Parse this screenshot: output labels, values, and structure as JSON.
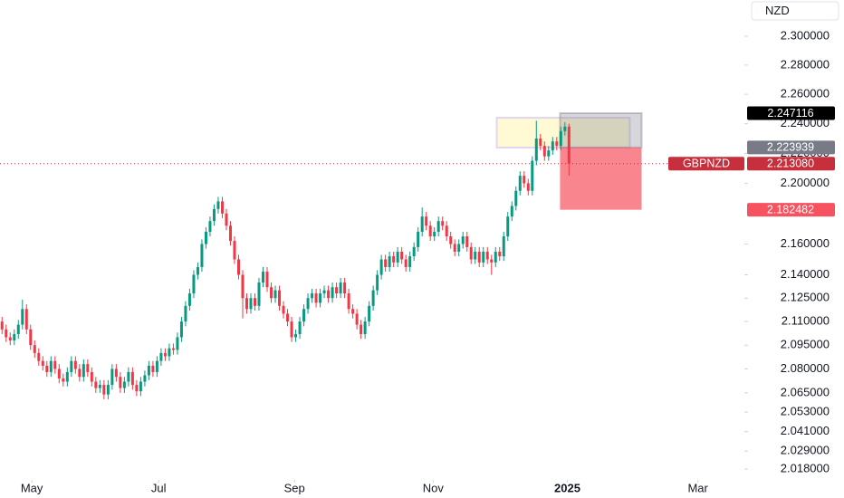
{
  "chart_data": {
    "type": "candlestick",
    "symbol": "GBPNZD",
    "currency": "NZD",
    "log": true,
    "grid": false,
    "up_color": "#089981",
    "down_color": "#f23645",
    "xlim": [
      -0.5,
      182
    ],
    "xticks": [
      {
        "value": 7.3,
        "label": "May"
      },
      {
        "value": 38.4,
        "label": "Jul"
      },
      {
        "value": 71.7,
        "label": "Sep"
      },
      {
        "value": 105.7,
        "label": "Nov"
      },
      {
        "value": 138.6,
        "label": "2025"
      },
      {
        "value": 170.6,
        "label": "Mar"
      }
    ],
    "ylim": [
      2.0114,
      2.3253
    ],
    "yticks": [
      {
        "value": 2.3,
        "label": "2.300000"
      },
      {
        "value": 2.28,
        "label": "2.280000"
      },
      {
        "value": 2.26,
        "label": "2.260000"
      },
      {
        "value": 2.24,
        "label": "2.240000"
      },
      {
        "value": 2.22,
        "label": "2.220000"
      },
      {
        "value": 2.2,
        "label": "2.200000"
      },
      {
        "value": 2.16,
        "label": "2.160000"
      },
      {
        "value": 2.14,
        "label": "2.140000"
      },
      {
        "value": 2.125,
        "label": "2.125000"
      },
      {
        "value": 2.11,
        "label": "2.110000"
      },
      {
        "value": 2.095,
        "label": "2.095000"
      },
      {
        "value": 2.08,
        "label": "2.080000"
      },
      {
        "value": 2.065,
        "label": "2.065000"
      },
      {
        "value": 2.053,
        "label": "2.053000"
      },
      {
        "value": 2.041,
        "label": "2.041000"
      },
      {
        "value": 2.029,
        "label": "2.029000"
      },
      {
        "value": 2.018,
        "label": "2.018000"
      }
    ],
    "open": [
      2.11,
      2.105,
      2.1,
      2.098,
      2.102,
      2.108,
      2.118,
      2.105,
      2.095,
      2.09,
      2.085,
      2.082,
      2.078,
      2.085,
      2.08,
      2.074,
      2.072,
      2.078,
      2.085,
      2.08,
      2.075,
      2.083,
      2.078,
      2.072,
      2.068,
      2.07,
      2.064,
      2.07,
      2.08,
      2.075,
      2.068,
      2.072,
      2.078,
      2.07,
      2.066,
      2.072,
      2.076,
      2.082,
      2.078,
      2.085,
      2.09,
      2.088,
      2.093,
      2.092,
      2.1,
      2.11,
      2.12,
      2.128,
      2.14,
      2.145,
      2.16,
      2.168,
      2.175,
      2.183,
      2.188,
      2.18,
      2.172,
      2.162,
      2.15,
      2.14,
      2.125,
      2.118,
      2.125,
      2.12,
      2.135,
      2.142,
      2.132,
      2.125,
      2.13,
      2.12,
      2.115,
      2.11,
      2.1,
      2.102,
      2.11,
      2.118,
      2.125,
      2.128,
      2.122,
      2.128,
      2.13,
      2.125,
      2.132,
      2.128,
      2.135,
      2.128,
      2.118,
      2.115,
      2.108,
      2.102,
      2.11,
      2.12,
      2.13,
      2.14,
      2.15,
      2.145,
      2.152,
      2.148,
      2.155,
      2.15,
      2.145,
      2.152,
      2.158,
      2.168,
      2.178,
      2.172,
      2.165,
      2.168,
      2.175,
      2.172,
      2.165,
      2.16,
      2.155,
      2.16,
      2.165,
      2.158,
      2.15,
      2.155,
      2.148,
      2.155,
      2.15,
      2.148,
      2.155,
      2.152,
      2.165,
      2.178,
      2.185,
      2.195,
      2.205,
      2.2,
      2.195,
      2.215,
      2.23,
      2.225,
      2.218,
      2.222,
      2.228,
      2.225,
      2.235,
      2.238
    ],
    "high": [
      2.113,
      2.108,
      2.103,
      2.105,
      2.111,
      2.124,
      2.121,
      2.108,
      2.098,
      2.093,
      2.088,
      2.085,
      2.088,
      2.088,
      2.083,
      2.077,
      2.081,
      2.088,
      2.088,
      2.083,
      2.086,
      2.086,
      2.081,
      2.075,
      2.073,
      2.073,
      2.073,
      2.083,
      2.083,
      2.078,
      2.075,
      2.081,
      2.081,
      2.073,
      2.075,
      2.079,
      2.085,
      2.085,
      2.088,
      2.093,
      2.093,
      2.096,
      2.096,
      2.103,
      2.113,
      2.123,
      2.131,
      2.143,
      2.148,
      2.163,
      2.171,
      2.178,
      2.186,
      2.191,
      2.191,
      2.183,
      2.175,
      2.165,
      2.153,
      2.143,
      2.128,
      2.128,
      2.128,
      2.138,
      2.145,
      2.145,
      2.135,
      2.133,
      2.133,
      2.123,
      2.118,
      2.113,
      2.105,
      2.113,
      2.121,
      2.128,
      2.131,
      2.131,
      2.131,
      2.133,
      2.133,
      2.135,
      2.135,
      2.138,
      2.138,
      2.131,
      2.121,
      2.118,
      2.111,
      2.113,
      2.123,
      2.133,
      2.143,
      2.153,
      2.153,
      2.155,
      2.155,
      2.158,
      2.158,
      2.153,
      2.155,
      2.161,
      2.171,
      2.184,
      2.181,
      2.175,
      2.171,
      2.178,
      2.178,
      2.175,
      2.168,
      2.163,
      2.163,
      2.168,
      2.168,
      2.161,
      2.158,
      2.158,
      2.158,
      2.158,
      2.153,
      2.158,
      2.158,
      2.168,
      2.181,
      2.188,
      2.198,
      2.208,
      2.208,
      2.203,
      2.218,
      2.242,
      2.233,
      2.228,
      2.225,
      2.231,
      2.231,
      2.238,
      2.241,
      2.24
    ],
    "low": [
      2.102,
      2.097,
      2.095,
      2.095,
      2.099,
      2.105,
      2.102,
      2.092,
      2.087,
      2.082,
      2.079,
      2.075,
      2.075,
      2.077,
      2.071,
      2.069,
      2.069,
      2.075,
      2.077,
      2.072,
      2.072,
      2.075,
      2.069,
      2.065,
      2.065,
      2.061,
      2.061,
      2.067,
      2.072,
      2.065,
      2.065,
      2.069,
      2.067,
      2.063,
      2.063,
      2.069,
      2.073,
      2.075,
      2.075,
      2.082,
      2.085,
      2.085,
      2.089,
      2.089,
      2.097,
      2.107,
      2.117,
      2.125,
      2.137,
      2.142,
      2.157,
      2.165,
      2.172,
      2.18,
      2.177,
      2.169,
      2.159,
      2.147,
      2.137,
      2.112,
      2.115,
      2.115,
      2.117,
      2.117,
      2.132,
      2.129,
      2.122,
      2.122,
      2.117,
      2.112,
      2.107,
      2.097,
      2.097,
      2.099,
      2.107,
      2.115,
      2.122,
      2.119,
      2.119,
      2.125,
      2.122,
      2.122,
      2.125,
      2.125,
      2.125,
      2.115,
      2.112,
      2.105,
      2.099,
      2.099,
      2.107,
      2.117,
      2.127,
      2.137,
      2.142,
      2.142,
      2.145,
      2.145,
      2.147,
      2.142,
      2.142,
      2.149,
      2.155,
      2.165,
      2.169,
      2.162,
      2.162,
      2.165,
      2.169,
      2.162,
      2.157,
      2.152,
      2.152,
      2.157,
      2.155,
      2.147,
      2.147,
      2.145,
      2.145,
      2.147,
      2.14,
      2.145,
      2.149,
      2.149,
      2.162,
      2.175,
      2.182,
      2.192,
      2.197,
      2.192,
      2.192,
      2.212,
      2.222,
      2.215,
      2.215,
      2.219,
      2.222,
      2.222,
      2.232,
      2.205
    ],
    "close": [
      2.105,
      2.1,
      2.098,
      2.102,
      2.108,
      2.118,
      2.105,
      2.095,
      2.09,
      2.085,
      2.082,
      2.078,
      2.085,
      2.08,
      2.074,
      2.072,
      2.078,
      2.085,
      2.08,
      2.075,
      2.083,
      2.078,
      2.072,
      2.068,
      2.07,
      2.064,
      2.07,
      2.08,
      2.075,
      2.068,
      2.072,
      2.078,
      2.07,
      2.066,
      2.072,
      2.076,
      2.082,
      2.078,
      2.085,
      2.09,
      2.088,
      2.093,
      2.092,
      2.1,
      2.11,
      2.12,
      2.128,
      2.14,
      2.145,
      2.16,
      2.168,
      2.175,
      2.183,
      2.188,
      2.18,
      2.172,
      2.162,
      2.15,
      2.14,
      2.125,
      2.118,
      2.125,
      2.12,
      2.135,
      2.142,
      2.132,
      2.125,
      2.13,
      2.12,
      2.115,
      2.11,
      2.1,
      2.102,
      2.11,
      2.118,
      2.125,
      2.128,
      2.122,
      2.128,
      2.13,
      2.125,
      2.132,
      2.128,
      2.135,
      2.128,
      2.118,
      2.115,
      2.108,
      2.102,
      2.11,
      2.12,
      2.13,
      2.14,
      2.15,
      2.145,
      2.152,
      2.148,
      2.155,
      2.15,
      2.145,
      2.152,
      2.158,
      2.168,
      2.178,
      2.172,
      2.165,
      2.168,
      2.175,
      2.172,
      2.165,
      2.16,
      2.155,
      2.16,
      2.165,
      2.158,
      2.15,
      2.155,
      2.148,
      2.155,
      2.15,
      2.148,
      2.155,
      2.152,
      2.165,
      2.178,
      2.185,
      2.195,
      2.205,
      2.2,
      2.195,
      2.215,
      2.23,
      2.225,
      2.218,
      2.222,
      2.228,
      2.225,
      2.235,
      2.238,
      2.21308
    ],
    "last_price": {
      "value": 2.21308,
      "label": "2.213080",
      "color": "#c62f3b"
    },
    "price_labels": [
      {
        "value": 2.247116,
        "label": "2.247116",
        "color": "#000000"
      },
      {
        "value": 2.223939,
        "label": "2.223939",
        "color": "#787b86"
      },
      {
        "value": 2.182482,
        "label": "2.182482",
        "color": "#f7525f"
      }
    ],
    "zones": [
      {
        "x": [
          121.3,
          153.9
        ],
        "y": [
          2.2239,
          2.244
        ],
        "color": "#fff9d4",
        "stroke": "#e1d5f0"
      },
      {
        "x": [
          136.8,
          156.8
        ],
        "y": [
          2.223939,
          2.247116
        ],
        "color": "rgba(120,123,134,0.3)",
        "stroke": "rgba(120,123,134,0.4)"
      },
      {
        "x": [
          136.8,
          156.8
        ],
        "y": [
          2.182482,
          2.223939
        ],
        "color": "rgba(247,82,95,0.7)",
        "stroke": "none"
      }
    ]
  }
}
